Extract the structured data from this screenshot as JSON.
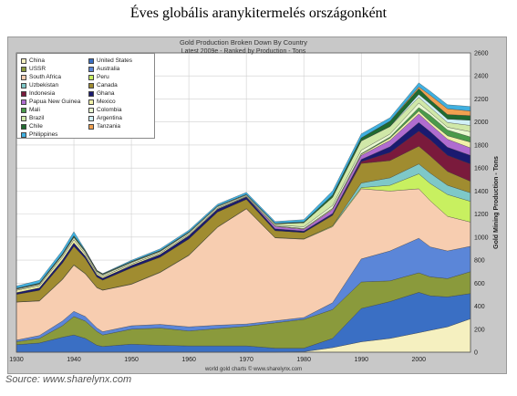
{
  "page": {
    "title": "Éves globális aranykitermelés országonként",
    "source": "Source: www.sharelynx.com"
  },
  "chart_data": {
    "type": "area",
    "title": "Gold Production Broken Down By Country",
    "subtitle": "Latest 2009e - Ranked by Production - Tons",
    "footer": "world gold charts © www.sharelynx.com",
    "xlabel": "",
    "ylabel": "Gold Mining Production - Tons",
    "xlim": [
      1930,
      2009
    ],
    "ylim": [
      0,
      2600
    ],
    "x_ticks": [
      1930,
      1940,
      1950,
      1960,
      1970,
      1980,
      1990,
      2000
    ],
    "y_ticks": [
      0,
      200,
      400,
      600,
      800,
      1000,
      1200,
      1400,
      1600,
      1800,
      2000,
      2200,
      2400,
      2600
    ],
    "grid": true,
    "legend_position": "top-left",
    "years": [
      1930,
      1934,
      1938,
      1940,
      1942,
      1944,
      1945,
      1950,
      1955,
      1960,
      1965,
      1970,
      1975,
      1980,
      1985,
      1990,
      1995,
      2000,
      2002,
      2005,
      2009
    ],
    "series": [
      {
        "name": "China",
        "color": "#f5f0c0",
        "values": [
          0,
          0,
          0,
          0,
          0,
          0,
          0,
          0,
          0,
          0,
          0,
          0,
          0,
          5,
          40,
          90,
          120,
          170,
          190,
          220,
          290
        ]
      },
      {
        "name": "United States",
        "color": "#3a6fc4",
        "values": [
          65,
          80,
          130,
          150,
          120,
          60,
          50,
          70,
          60,
          55,
          55,
          55,
          35,
          30,
          80,
          290,
          320,
          350,
          300,
          260,
          220
        ]
      },
      {
        "name": "USSR",
        "color": "#8a9a3c",
        "values": [
          25,
          40,
          100,
          160,
          150,
          120,
          100,
          130,
          150,
          130,
          150,
          170,
          220,
          250,
          250,
          230,
          180,
          170,
          165,
          160,
          190
        ]
      },
      {
        "name": "Australia",
        "color": "#5b86d8",
        "values": [
          15,
          25,
          40,
          45,
          40,
          30,
          28,
          30,
          32,
          35,
          30,
          20,
          18,
          16,
          60,
          200,
          260,
          300,
          260,
          240,
          220
        ]
      },
      {
        "name": "South Africa",
        "color": "#f7cdb0",
        "values": [
          330,
          300,
          360,
          400,
          370,
          350,
          360,
          360,
          450,
          620,
          850,
          1000,
          720,
          680,
          660,
          610,
          520,
          430,
          400,
          300,
          210
        ]
      },
      {
        "name": "Peru",
        "color": "#c8f060",
        "values": [
          2,
          3,
          4,
          5,
          4,
          3,
          3,
          3,
          4,
          4,
          3,
          3,
          3,
          4,
          8,
          10,
          50,
          130,
          150,
          190,
          180
        ]
      },
      {
        "name": "Uzbekistan",
        "color": "#7ec8c8",
        "values": [
          0,
          0,
          0,
          0,
          0,
          0,
          0,
          0,
          0,
          0,
          0,
          0,
          0,
          0,
          0,
          40,
          65,
          85,
          90,
          80,
          75
        ]
      },
      {
        "name": "Canada",
        "color": "#a08c30",
        "values": [
          65,
          90,
          140,
          160,
          130,
          90,
          85,
          140,
          130,
          140,
          130,
          80,
          60,
          55,
          90,
          170,
          150,
          155,
          150,
          120,
          100
        ]
      },
      {
        "name": "Indonesia",
        "color": "#7a1a3c",
        "values": [
          1,
          1,
          2,
          2,
          1,
          1,
          1,
          1,
          1,
          1,
          1,
          1,
          1,
          1,
          5,
          15,
          70,
          130,
          140,
          140,
          150
        ]
      },
      {
        "name": "Ghana",
        "color": "#1a1a70",
        "values": [
          15,
          20,
          25,
          28,
          20,
          18,
          17,
          20,
          22,
          28,
          25,
          20,
          15,
          12,
          12,
          20,
          50,
          75,
          70,
          70,
          75
        ]
      },
      {
        "name": "Papua New Guinea",
        "color": "#b06cd0",
        "values": [
          0,
          0,
          0,
          0,
          0,
          0,
          0,
          0,
          0,
          0,
          0,
          0,
          20,
          15,
          35,
          35,
          55,
          75,
          65,
          70,
          65
        ]
      },
      {
        "name": "Mexico",
        "color": "#f0f0a8",
        "values": [
          20,
          20,
          25,
          28,
          18,
          15,
          14,
          12,
          12,
          10,
          8,
          6,
          5,
          6,
          8,
          10,
          20,
          25,
          22,
          30,
          50
        ]
      },
      {
        "name": "Mali",
        "color": "#4a9a4a",
        "values": [
          0,
          0,
          0,
          0,
          0,
          0,
          0,
          0,
          0,
          0,
          0,
          0,
          0,
          1,
          2,
          5,
          10,
          30,
          55,
          50,
          45
        ]
      },
      {
        "name": "Colombia",
        "color": "#e8f8d0",
        "values": [
          8,
          10,
          15,
          18,
          15,
          12,
          12,
          12,
          12,
          12,
          10,
          8,
          8,
          15,
          25,
          30,
          25,
          40,
          25,
          25,
          45
        ]
      },
      {
        "name": "Brazil",
        "color": "#d0e8a8",
        "values": [
          5,
          5,
          5,
          6,
          6,
          5,
          5,
          5,
          5,
          6,
          6,
          6,
          10,
          35,
          70,
          80,
          65,
          50,
          45,
          40,
          55
        ]
      },
      {
        "name": "Argentina",
        "color": "#d0f0f8",
        "values": [
          0,
          0,
          0,
          0,
          0,
          0,
          0,
          0,
          0,
          0,
          0,
          0,
          0,
          0,
          1,
          1,
          1,
          25,
          30,
          30,
          45
        ]
      },
      {
        "name": "Chile",
        "color": "#206a30",
        "values": [
          4,
          6,
          8,
          10,
          8,
          6,
          5,
          5,
          5,
          4,
          3,
          2,
          4,
          7,
          20,
          25,
          45,
          50,
          35,
          40,
          40
        ]
      },
      {
        "name": "Tanzania",
        "color": "#f0a050",
        "values": [
          0,
          0,
          0,
          0,
          0,
          0,
          0,
          0,
          0,
          0,
          0,
          0,
          0,
          0,
          0,
          1,
          1,
          15,
          40,
          50,
          40
        ]
      },
      {
        "name": "Philippines",
        "color": "#40b0e0",
        "values": [
          20,
          25,
          30,
          35,
          5,
          0,
          3,
          10,
          15,
          15,
          15,
          18,
          16,
          20,
          35,
          35,
          30,
          35,
          35,
          35,
          40
        ]
      }
    ]
  }
}
